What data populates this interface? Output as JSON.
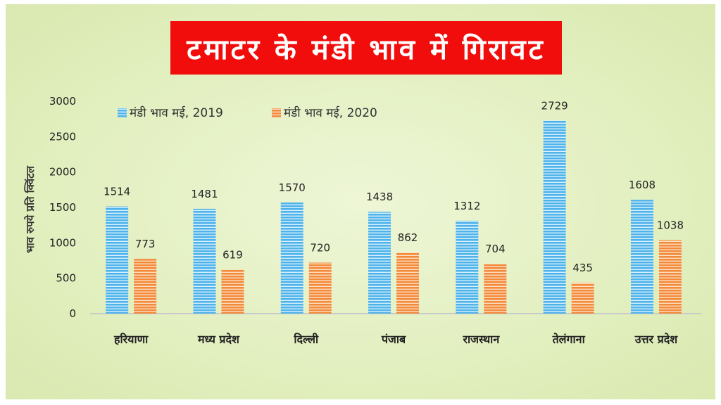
{
  "colors": {
    "title_bg": "#f20d0d",
    "series_2019": "#4fb3ea",
    "series_2020": "#f28a3a",
    "background": "#e6f1c8"
  },
  "chart_data": {
    "type": "bar",
    "title": "टमाटर के मंडी भाव में गिरावट",
    "ylabel": "भाव रुपये प्रति क्विंटल",
    "xlabel": "",
    "ylim": [
      0,
      3000
    ],
    "yticks": [
      "0",
      "500",
      "1000",
      "1500",
      "2000",
      "2500",
      "3000"
    ],
    "categories": [
      "हरियाणा",
      "मध्य प्रदेश",
      "दिल्ली",
      "पंजाब",
      "राजस्थान",
      "तेलंगाना",
      "उत्तर प्रदेश"
    ],
    "series": [
      {
        "name": "मंडी भाव मई, 2019",
        "values": [
          1514,
          1481,
          1570,
          1438,
          1312,
          2729,
          1608
        ]
      },
      {
        "name": "मंडी भाव मई, 2020",
        "values": [
          773,
          619,
          720,
          862,
          704,
          435,
          1038
        ]
      }
    ],
    "legend": "top-left",
    "grid": false
  }
}
